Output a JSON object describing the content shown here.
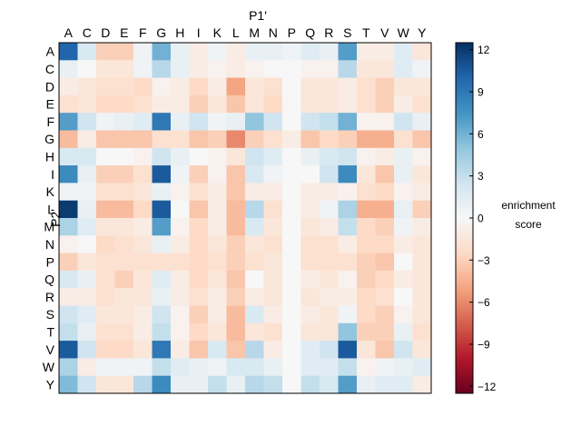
{
  "chart_data": {
    "type": "heatmap",
    "title": "",
    "xlabel": "P1'",
    "ylabel": "P2'",
    "x_categories": [
      "A",
      "C",
      "D",
      "E",
      "F",
      "G",
      "H",
      "I",
      "K",
      "L",
      "M",
      "N",
      "P",
      "Q",
      "R",
      "S",
      "T",
      "V",
      "W",
      "Y"
    ],
    "y_categories": [
      "A",
      "C",
      "D",
      "E",
      "F",
      "G",
      "H",
      "I",
      "K",
      "L",
      "M",
      "N",
      "P",
      "Q",
      "R",
      "S",
      "T",
      "V",
      "W",
      "Y"
    ],
    "xaxis_position": "top",
    "colorbar": {
      "label_line1": "enrichment",
      "label_line2": "score",
      "range": [
        -12.5,
        12.5
      ],
      "ticks": [
        12,
        9,
        6,
        3,
        0,
        -3,
        -6,
        -9,
        -12
      ],
      "tick_labels": [
        "12",
        "9",
        "6",
        "3",
        "0",
        "−3",
        "−6",
        "−9",
        "−12"
      ],
      "colormap": "RdBu_r"
    },
    "values": [
      [
        10,
        2,
        -3,
        -3,
        0.5,
        6,
        1,
        -1,
        0.5,
        -1,
        1,
        1,
        0.5,
        1.5,
        1,
        7,
        -1,
        -1,
        1.5,
        -1.5
      ],
      [
        1,
        0,
        -1.5,
        -1.5,
        0.5,
        3.5,
        1,
        -1,
        -0.5,
        -1,
        -0.5,
        0,
        0,
        -0.5,
        -0.5,
        3.5,
        -1.5,
        -1.5,
        1.5,
        0.5
      ],
      [
        -1,
        -1.5,
        -2,
        -2,
        -2.5,
        -0.5,
        -1,
        -2.5,
        -1,
        -5,
        -1.5,
        -2,
        0,
        -1.5,
        -1.5,
        -1,
        -2,
        -3,
        -1.5,
        -1.5
      ],
      [
        -2,
        -1.5,
        -2.5,
        -2.5,
        -2,
        -1,
        -1,
        -3,
        -1.5,
        -3.5,
        -1.5,
        -2.5,
        0,
        -1.5,
        -1.5,
        -1,
        -2,
        -3,
        -1,
        -2
      ],
      [
        7,
        2.5,
        0.5,
        1,
        1.5,
        9,
        1,
        2.5,
        0.5,
        1,
        5,
        2.5,
        0,
        2.5,
        3,
        6,
        -0.5,
        -0.5,
        2.5,
        1
      ],
      [
        -4,
        -1,
        -3.5,
        -3.5,
        -3.5,
        -2,
        -2,
        -3.5,
        -3,
        -6,
        -3,
        -2,
        -1,
        -3.5,
        -2.5,
        -3,
        -4.5,
        -4.5,
        -2,
        -3.5
      ],
      [
        2,
        2,
        0,
        0,
        -0.5,
        2.5,
        1,
        0,
        -0.5,
        -1.5,
        2.5,
        1.5,
        0,
        1,
        2,
        2.5,
        -0.5,
        -1,
        1,
        -0.5
      ],
      [
        8,
        1,
        -3,
        -3,
        -2,
        10.5,
        0.5,
        -3,
        -0.5,
        -3.5,
        2,
        0.5,
        0,
        0,
        2.5,
        8,
        -1.5,
        -3.5,
        1,
        -1.5
      ],
      [
        0.5,
        0.5,
        -2,
        -2,
        -1.5,
        1,
        -0.5,
        -2,
        -1,
        -3.5,
        -1,
        -1,
        0,
        -1,
        -1,
        -0.5,
        -2,
        -2.5,
        -0.5,
        -1
      ],
      [
        12,
        1,
        -4,
        -4,
        -2.5,
        10.5,
        0,
        -3.5,
        -1,
        -4,
        3.5,
        -2,
        0,
        -1,
        0.5,
        4,
        -4.5,
        -4.5,
        1,
        -3
      ],
      [
        4,
        1.5,
        -1.5,
        -1.5,
        -1,
        7,
        -0.5,
        -2.5,
        -1,
        -4,
        2,
        -1.5,
        0,
        -1.5,
        -1,
        3,
        -2.5,
        -3,
        0.5,
        -1
      ],
      [
        -0.5,
        0,
        -2.5,
        -2,
        -1.5,
        1,
        -1,
        -2.5,
        -1.5,
        -3,
        -1.5,
        -2,
        0,
        -2,
        -2,
        -1,
        -2.5,
        -2.5,
        -1,
        -1.5
      ],
      [
        -3,
        -1.5,
        -2,
        -2,
        -2,
        -2,
        -2,
        -2.5,
        -2,
        -3,
        -2,
        -1.5,
        0,
        -2,
        -2,
        -2,
        -3,
        -3.5,
        0,
        -1.5
      ],
      [
        2,
        1,
        -2,
        -3,
        -1.5,
        1.5,
        -1,
        -2.5,
        -1.5,
        -3.5,
        0,
        -1.5,
        0,
        -1,
        -1.5,
        -0.5,
        -3,
        -2.5,
        -1,
        -1.5
      ],
      [
        -1,
        -1,
        -2,
        -1.5,
        -1.5,
        1,
        -1,
        -2,
        -1,
        -3,
        -1,
        -1.5,
        0,
        -1.5,
        -1,
        -1,
        -2.5,
        -2,
        0,
        -1.5
      ],
      [
        2.5,
        1.5,
        -1.5,
        -1.5,
        -1,
        2.5,
        -0.5,
        -3,
        -1,
        -4,
        2,
        -1,
        0,
        -1,
        -1.5,
        0.5,
        -2.5,
        -3,
        -0.5,
        -1.5
      ],
      [
        3,
        1,
        -2,
        -2,
        -1,
        3,
        -0.5,
        -2.5,
        -1.5,
        -4,
        -1.5,
        -2,
        0,
        -1.5,
        -1.5,
        5,
        -3,
        -3,
        1,
        -2
      ],
      [
        10.5,
        2.5,
        -2.5,
        -2.5,
        -1.5,
        9,
        -1,
        -3.5,
        2,
        -3.5,
        3.5,
        -1,
        0,
        1.5,
        2.5,
        10.5,
        -1.5,
        -3.5,
        2.5,
        -1.5
      ],
      [
        4,
        -1,
        0.5,
        0.5,
        0.5,
        3,
        1.5,
        1,
        0.5,
        2,
        2,
        1,
        0,
        1.5,
        1.5,
        3,
        -0.5,
        0.5,
        1,
        1.5
      ],
      [
        5.5,
        2.5,
        -1.5,
        -1.5,
        3.5,
        8,
        1,
        1,
        3,
        1,
        3.5,
        3,
        0,
        3,
        2,
        7,
        1,
        1.5,
        1.5,
        -1
      ]
    ]
  }
}
